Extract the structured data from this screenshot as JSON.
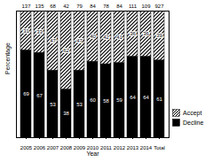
{
  "chart_data": {
    "type": "bar",
    "stacked": true,
    "data_labels": true,
    "tick_labels": "x",
    "x_label": "Year",
    "y_label": "Percentage",
    "categories": [
      "2005",
      "2006",
      "2007",
      "2008",
      "2009",
      "2010",
      "2011",
      "2012",
      "2013",
      "2014",
      "Total"
    ],
    "series": [
      {
        "name": "Decline",
        "color": "#000000",
        "values": [
          69,
          67,
          53,
          38,
          53,
          60,
          58,
          59,
          64,
          64,
          61
        ]
      },
      {
        "name": "Accept",
        "color": "#ffffff",
        "line_style": "hatched",
        "values": [
          31,
          33,
          47,
          62,
          47,
          40,
          42,
          41,
          36,
          36,
          39
        ]
      }
    ],
    "totals": [
      137,
      135,
      68,
      42,
      79,
      84,
      78,
      84,
      111,
      109,
      927
    ],
    "ylim": [
      0,
      100
    ],
    "legend": "right"
  }
}
